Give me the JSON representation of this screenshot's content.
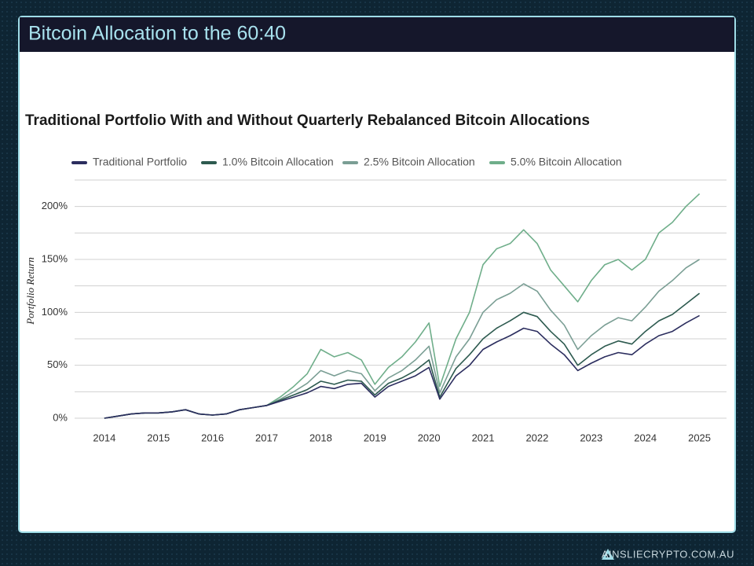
{
  "header": {
    "title": "Bitcoin Allocation to the 60:40"
  },
  "footer": {
    "brand": "AINSLIECRYPTO.COM.AU"
  },
  "chart_data": {
    "type": "line",
    "title": "Traditional Portfolio With and Without Quarterly Rebalanced Bitcoin Allocations",
    "y_label": "Portfolio Return",
    "x": [
      2014,
      2014.25,
      2014.5,
      2014.75,
      2015,
      2015.25,
      2015.5,
      2015.75,
      2016,
      2016.25,
      2016.5,
      2016.75,
      2017,
      2017.25,
      2017.5,
      2017.75,
      2018,
      2018.25,
      2018.5,
      2018.75,
      2019,
      2019.25,
      2019.5,
      2019.75,
      2020,
      2020.2,
      2020.5,
      2020.75,
      2021,
      2021.25,
      2021.5,
      2021.75,
      2022,
      2022.25,
      2022.5,
      2022.75,
      2023,
      2023.25,
      2023.5,
      2023.75,
      2024,
      2024.25,
      2024.5,
      2024.75,
      2025
    ],
    "series": [
      {
        "name": "Traditional Portfolio",
        "color": "#2b2d5e",
        "values": [
          0,
          2,
          4,
          5,
          5,
          6,
          8,
          4,
          3,
          4,
          8,
          10,
          12,
          16,
          20,
          24,
          30,
          28,
          32,
          33,
          20,
          30,
          35,
          40,
          48,
          18,
          40,
          50,
          65,
          72,
          78,
          85,
          82,
          70,
          60,
          45,
          52,
          58,
          62,
          60,
          70,
          78,
          82,
          90,
          97
        ]
      },
      {
        "name": "1.0% Bitcoin Allocation",
        "color": "#2d5a4f",
        "values": [
          0,
          2,
          4,
          5,
          5,
          6,
          8,
          4,
          3,
          4,
          8,
          10,
          12,
          17,
          22,
          27,
          35,
          32,
          36,
          35,
          22,
          33,
          38,
          45,
          55,
          20,
          47,
          60,
          75,
          85,
          92,
          100,
          96,
          82,
          70,
          50,
          60,
          68,
          73,
          70,
          82,
          92,
          98,
          108,
          118
        ]
      },
      {
        "name": "2.5% Bitcoin Allocation",
        "color": "#7a9e94",
        "values": [
          0,
          2,
          4,
          5,
          5,
          6,
          8,
          4,
          3,
          4,
          8,
          10,
          12,
          18,
          25,
          33,
          45,
          40,
          45,
          42,
          26,
          38,
          45,
          55,
          68,
          24,
          58,
          75,
          100,
          112,
          118,
          127,
          120,
          102,
          88,
          65,
          78,
          88,
          95,
          92,
          105,
          120,
          130,
          142,
          150
        ]
      },
      {
        "name": "5.0% Bitcoin Allocation",
        "color": "#6fae8a",
        "values": [
          0,
          2,
          4,
          5,
          5,
          6,
          8,
          4,
          3,
          4,
          8,
          10,
          12,
          20,
          30,
          42,
          65,
          58,
          62,
          55,
          32,
          48,
          58,
          72,
          90,
          30,
          75,
          100,
          145,
          160,
          165,
          178,
          165,
          140,
          125,
          110,
          130,
          145,
          150,
          140,
          150,
          175,
          185,
          200,
          212
        ]
      }
    ],
    "xlim": [
      2013.45,
      2025.5
    ],
    "xticks": [
      2014,
      2015,
      2016,
      2017,
      2018,
      2019,
      2020,
      2021,
      2022,
      2023,
      2024,
      2025
    ],
    "ylim": [
      0,
      225
    ],
    "yticks": [
      {
        "value": 0,
        "label": "0%"
      },
      {
        "value": 50,
        "label": "50%"
      },
      {
        "value": 100,
        "label": "100%"
      },
      {
        "value": 150,
        "label": "150%"
      },
      {
        "value": 200,
        "label": "200%"
      }
    ],
    "grid_yticks": [
      0,
      25,
      50,
      75,
      100,
      125,
      150,
      175,
      200,
      225
    ],
    "grid": true,
    "legend": "top"
  }
}
